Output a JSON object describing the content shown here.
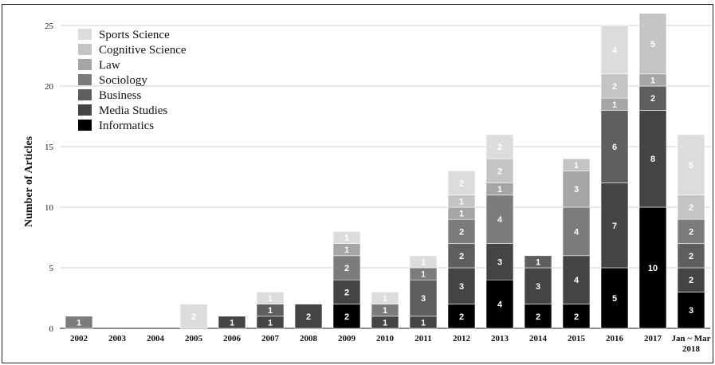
{
  "chart_data": {
    "type": "bar",
    "stacked": true,
    "title": "",
    "xlabel": "",
    "ylabel": "Number of Articles",
    "ylim": [
      0,
      25
    ],
    "yticks": [
      "0",
      "5",
      "10",
      "15",
      "20",
      "25"
    ],
    "grid": "horizontal",
    "legend_position": "top-left",
    "categories": [
      "2002",
      "2003",
      "2004",
      "2005",
      "2006",
      "2007",
      "2008",
      "2009",
      "2010",
      "2011",
      "2012",
      "2013",
      "2014",
      "2015",
      "2016",
      "2017",
      "Jan ~ Mar 2018"
    ],
    "series": [
      {
        "name": "Informatics",
        "color": "#000000",
        "label_color": "#ffffff",
        "values": [
          0,
          0,
          0,
          0,
          0,
          0,
          0,
          2,
          0,
          0,
          2,
          4,
          2,
          2,
          5,
          10,
          3
        ]
      },
      {
        "name": "Media Studies",
        "color": "#444444",
        "label_color": "#ffffff",
        "values": [
          0,
          0,
          0,
          0,
          1,
          1,
          2,
          2,
          1,
          1,
          3,
          3,
          3,
          4,
          7,
          8,
          2
        ]
      },
      {
        "name": "Business",
        "color": "#5e5e5e",
        "label_color": "#ffffff",
        "values": [
          0,
          0,
          0,
          0,
          0,
          1,
          0,
          0,
          0,
          3,
          2,
          0,
          1,
          0,
          6,
          2,
          2
        ]
      },
      {
        "name": "Sociology",
        "color": "#7c7c7c",
        "label_color": "#ffffff",
        "values": [
          1,
          0,
          0,
          0,
          0,
          0,
          0,
          2,
          1,
          1,
          2,
          4,
          0,
          4,
          0,
          0,
          2
        ]
      },
      {
        "name": "Law",
        "color": "#a5a5a5",
        "label_color": "#ffffff",
        "values": [
          0,
          0,
          0,
          0,
          0,
          0,
          0,
          1,
          0,
          0,
          1,
          1,
          0,
          3,
          1,
          1,
          0
        ]
      },
      {
        "name": "Cognitive Science",
        "color": "#c4c4c4",
        "label_color": "#ffffff",
        "values": [
          0,
          0,
          0,
          0,
          0,
          0,
          0,
          0,
          0,
          0,
          1,
          2,
          0,
          1,
          2,
          5,
          2
        ]
      },
      {
        "name": "Sports Science",
        "color": "#dcdcdc",
        "label_color": "#ffffff",
        "values": [
          0,
          0,
          0,
          2,
          0,
          1,
          0,
          1,
          1,
          1,
          2,
          2,
          0,
          0,
          4,
          0,
          5
        ]
      }
    ]
  }
}
